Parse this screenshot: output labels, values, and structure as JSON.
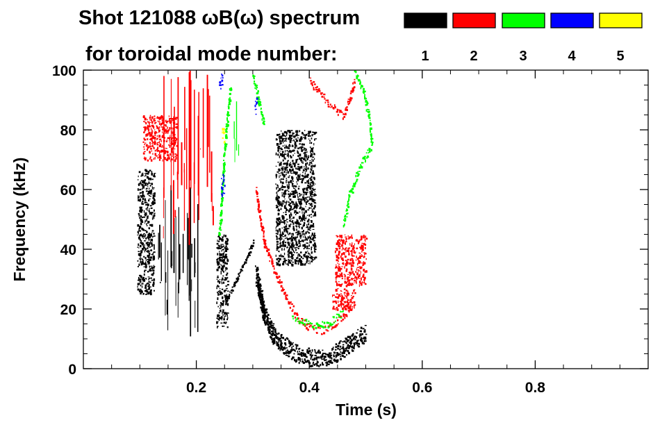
{
  "chart_data": {
    "type": "heatmap",
    "title": "Shot 121088 ωB(ω) spectrum",
    "subtitle": "for toroidal mode number:",
    "xlabel": "Time (s)",
    "ylabel": "Frequency (kHz)",
    "xlim": [
      0.0,
      1.0
    ],
    "ylim": [
      0,
      100
    ],
    "x_ticks": [
      0.2,
      0.4,
      0.6,
      0.8
    ],
    "x_tick_labels": [
      "0.2",
      "0.4",
      "0.6",
      "0.8"
    ],
    "y_ticks": [
      0,
      20,
      40,
      60,
      80,
      100
    ],
    "y_tick_labels": [
      "0",
      "20",
      "40",
      "60",
      "80",
      "100"
    ],
    "grid": false,
    "legend": {
      "placement": "top-right",
      "entries": [
        {
          "label": "1",
          "color": "#000000"
        },
        {
          "label": "2",
          "color": "#ff0000"
        },
        {
          "label": "3",
          "color": "#00ff00"
        },
        {
          "label": "4",
          "color": "#0000ff"
        },
        {
          "label": "5",
          "color": "#ffff00"
        }
      ]
    },
    "features": [
      {
        "mode": "1",
        "color": "#000000",
        "kind": "region",
        "t": [
          0.095,
          0.125
        ],
        "f": [
          25,
          67
        ]
      },
      {
        "mode": "1",
        "color": "#000000",
        "kind": "streaks",
        "t": [
          0.125,
          0.205
        ],
        "f": [
          10,
          62
        ]
      },
      {
        "mode": "1",
        "color": "#000000",
        "kind": "region",
        "t": [
          0.235,
          0.255
        ],
        "f": [
          14,
          45
        ]
      },
      {
        "mode": "1",
        "color": "#000000",
        "kind": "chirp",
        "points": [
          [
            0.25,
            22
          ],
          [
            0.27,
            30
          ],
          [
            0.29,
            38
          ],
          [
            0.3,
            43
          ]
        ]
      },
      {
        "mode": "1",
        "color": "#000000",
        "kind": "region",
        "t": [
          0.34,
          0.41
        ],
        "f": [
          35,
          80
        ]
      },
      {
        "mode": "1",
        "color": "#000000",
        "kind": "band",
        "points": [
          [
            0.305,
            32
          ],
          [
            0.32,
            18
          ],
          [
            0.34,
            10
          ],
          [
            0.37,
            6
          ],
          [
            0.4,
            4
          ],
          [
            0.43,
            4
          ],
          [
            0.46,
            7
          ],
          [
            0.48,
            10
          ],
          [
            0.5,
            12
          ]
        ]
      },
      {
        "mode": "2",
        "color": "#ff0000",
        "kind": "region",
        "t": [
          0.105,
          0.165
        ],
        "f": [
          70,
          85
        ]
      },
      {
        "mode": "2",
        "color": "#ff0000",
        "kind": "streaks",
        "t": [
          0.14,
          0.23
        ],
        "f": [
          40,
          100
        ]
      },
      {
        "mode": "2",
        "color": "#ff0000",
        "kind": "line",
        "points": [
          [
            0.305,
            60
          ],
          [
            0.32,
            42
          ],
          [
            0.34,
            32
          ],
          [
            0.36,
            23
          ],
          [
            0.38,
            17
          ],
          [
            0.4,
            14
          ],
          [
            0.42,
            13
          ],
          [
            0.44,
            14
          ],
          [
            0.46,
            18
          ],
          [
            0.48,
            22
          ]
        ]
      },
      {
        "mode": "2",
        "color": "#ff0000",
        "kind": "line",
        "points": [
          [
            0.4,
            97
          ],
          [
            0.42,
            92
          ],
          [
            0.44,
            88
          ],
          [
            0.46,
            85
          ],
          [
            0.47,
            90
          ],
          [
            0.48,
            97
          ]
        ]
      },
      {
        "mode": "2",
        "color": "#ff0000",
        "kind": "region",
        "t": [
          0.445,
          0.5
        ],
        "f": [
          28,
          45
        ]
      },
      {
        "mode": "2",
        "color": "#ff0000",
        "kind": "region",
        "t": [
          0.44,
          0.48
        ],
        "f": [
          20,
          27
        ]
      },
      {
        "mode": "3",
        "color": "#00ff00",
        "kind": "line",
        "points": [
          [
            0.24,
            45
          ],
          [
            0.245,
            60
          ],
          [
            0.25,
            75
          ],
          [
            0.255,
            85
          ],
          [
            0.26,
            95
          ]
        ]
      },
      {
        "mode": "3",
        "color": "#00ff00",
        "kind": "line",
        "points": [
          [
            0.3,
            98
          ],
          [
            0.31,
            90
          ],
          [
            0.32,
            82
          ]
        ]
      },
      {
        "mode": "3",
        "color": "#00ff00",
        "kind": "line",
        "points": [
          [
            0.48,
            100
          ],
          [
            0.495,
            93
          ],
          [
            0.505,
            85
          ],
          [
            0.51,
            75
          ],
          [
            0.49,
            68
          ],
          [
            0.47,
            58
          ],
          [
            0.46,
            48
          ]
        ]
      },
      {
        "mode": "3",
        "color": "#00ff00",
        "kind": "line",
        "points": [
          [
            0.37,
            17
          ],
          [
            0.4,
            15
          ],
          [
            0.43,
            15
          ],
          [
            0.46,
            19
          ]
        ]
      },
      {
        "mode": "3",
        "color": "#00ff00",
        "kind": "streaks",
        "t": [
          0.265,
          0.275
        ],
        "f": [
          68,
          95
        ]
      },
      {
        "mode": "4",
        "color": "#0000ff",
        "kind": "region",
        "t": [
          0.243,
          0.25
        ],
        "f": [
          58,
          66
        ]
      },
      {
        "mode": "4",
        "color": "#0000ff",
        "kind": "region",
        "t": [
          0.303,
          0.306
        ],
        "f": [
          85,
          92
        ]
      },
      {
        "mode": "4",
        "color": "#0000ff",
        "kind": "region",
        "t": [
          0.24,
          0.245
        ],
        "f": [
          94,
          100
        ]
      },
      {
        "mode": "5",
        "color": "#ffff00",
        "kind": "region",
        "t": [
          0.245,
          0.25
        ],
        "f": [
          76,
          81
        ]
      }
    ]
  }
}
